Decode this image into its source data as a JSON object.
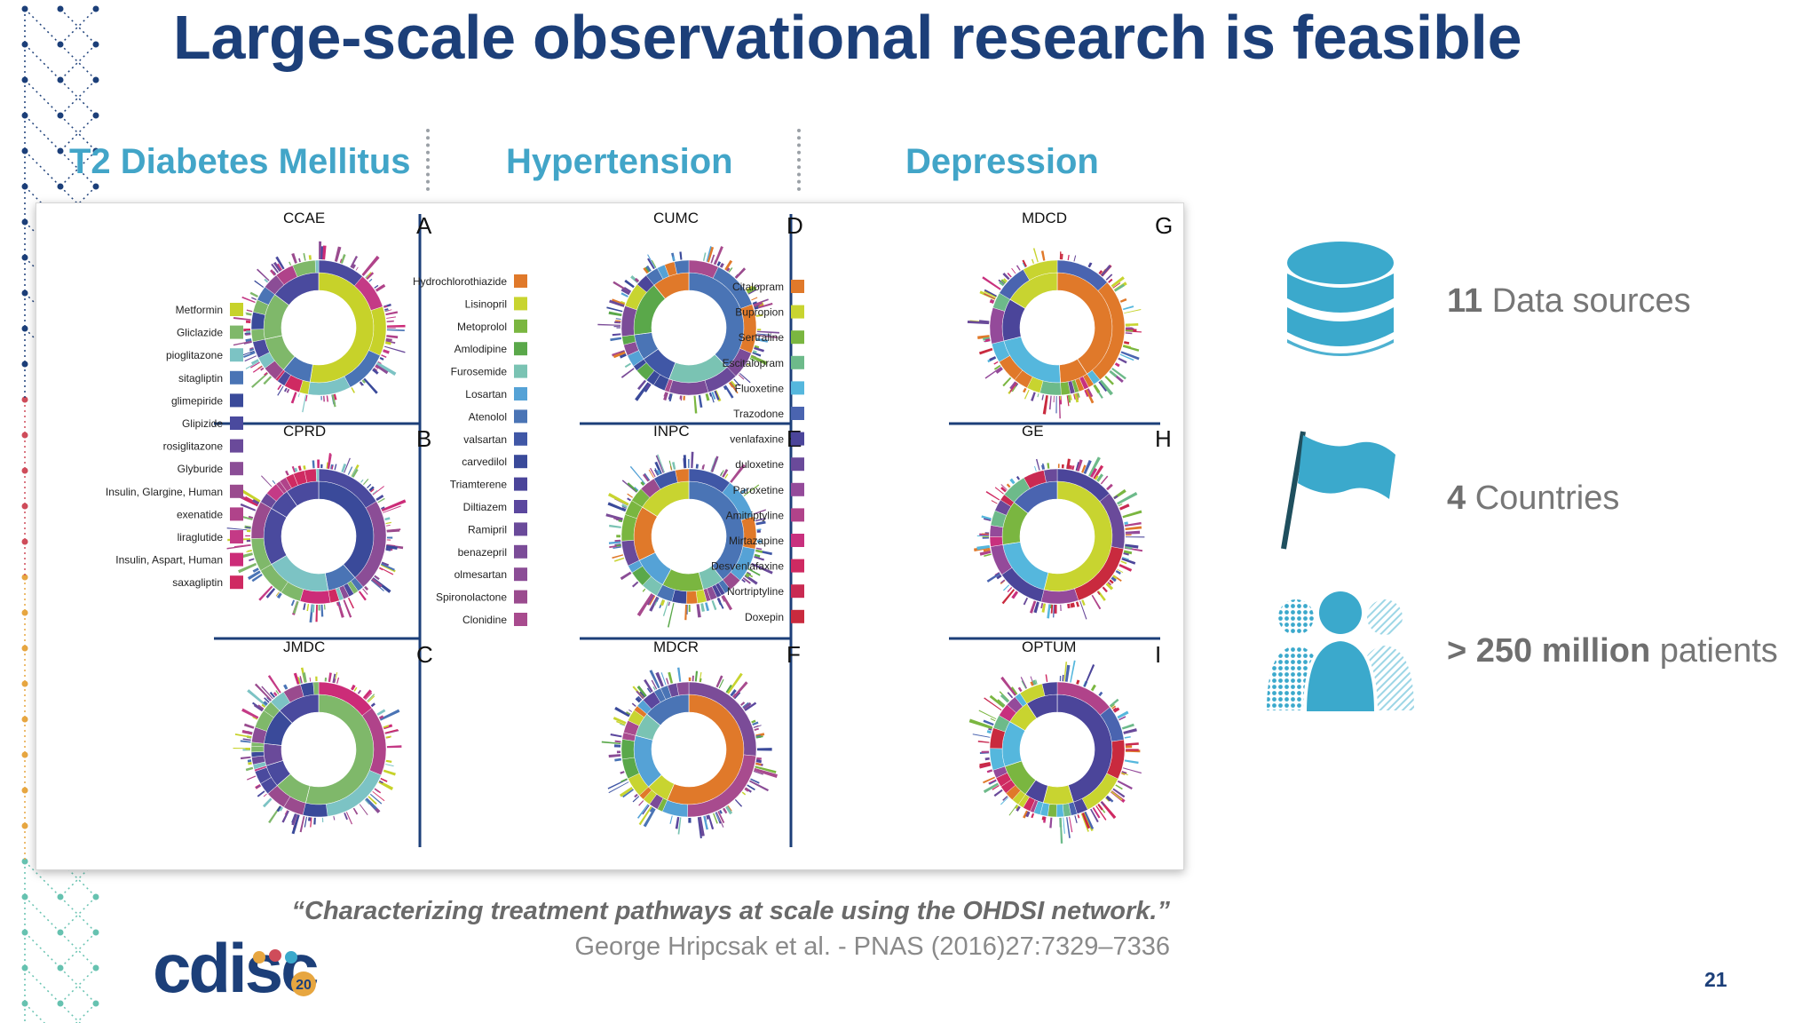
{
  "title": "Large-scale observational research is feasible",
  "conditions": [
    "T2 Diabetes Mellitus",
    "Hypertension",
    "Depression"
  ],
  "figure": {
    "panels": [
      {
        "letter": "A",
        "source": "CCAE"
      },
      {
        "letter": "B",
        "source": "CPRD"
      },
      {
        "letter": "C",
        "source": "JMDC"
      },
      {
        "letter": "D",
        "source": "CUMC"
      },
      {
        "letter": "E",
        "source": "INPC"
      },
      {
        "letter": "F",
        "source": "MDCR"
      },
      {
        "letter": "G",
        "source": "MDCD"
      },
      {
        "letter": "H",
        "source": "GE"
      },
      {
        "letter": "I",
        "source": "OPTUM"
      }
    ],
    "legends": [
      {
        "items": [
          "Metformin",
          "Gliclazide",
          "pioglitazone",
          "sitagliptin",
          "glimepiride",
          "Glipizide",
          "rosiglitazone",
          "Glyburide",
          "Insulin, Glargine, Human",
          "exenatide",
          "liraglutide",
          "Insulin, Aspart, Human",
          "saxagliptin"
        ],
        "colors": [
          "#c7d22a",
          "#7fb86a",
          "#7cc3c4",
          "#4a74b5",
          "#3a4a9a",
          "#4a4a9e",
          "#6a4a9a",
          "#8b4d96",
          "#9a4b8e",
          "#b0438a",
          "#c43a86",
          "#cc2c78",
          "#cf2a62"
        ]
      },
      {
        "items": [
          "Hydrochlorothiazide",
          "Lisinopril",
          "Metoprolol",
          "Amlodipine",
          "Furosemide",
          "Losartan",
          "Atenolol",
          "valsartan",
          "carvedilol",
          "Triamterene",
          "Diltiazem",
          "Ramipril",
          "benazepril",
          "olmesartan",
          "Spironolactone",
          "Clonidine"
        ],
        "colors": [
          "#e0792a",
          "#c8d430",
          "#7ab640",
          "#5aa84a",
          "#7ac3b3",
          "#55a2d6",
          "#4a74b5",
          "#4057a6",
          "#3a4a9a",
          "#4b459a",
          "#5b479e",
          "#6a4a9a",
          "#7b4c98",
          "#8b4d96",
          "#9a4b8e",
          "#a84b8e"
        ]
      },
      {
        "items": [
          "Citalopram",
          "Bupropion",
          "Sertraline",
          "Escitalopram",
          "Fluoxetine",
          "Trazodone",
          "venlafaxine",
          "duloxetine",
          "Paroxetine",
          "Amitriptyline",
          "Mirtazapine",
          "Desvenlafaxine",
          "Nortriptyline",
          "Doxepin"
        ],
        "colors": [
          "#e0792a",
          "#c8d430",
          "#7ab640",
          "#6dba8a",
          "#55b7dd",
          "#4a64b0",
          "#4b459a",
          "#6a4a9a",
          "#944a9a",
          "#b0438a",
          "#c8307e",
          "#cf2a62",
          "#c92a52",
          "#c92a3e"
        ]
      }
    ]
  },
  "stats": [
    {
      "value": "11",
      "label": "Data sources",
      "icon": "database-icon"
    },
    {
      "value": "4",
      "label": "Countries",
      "icon": "flag-icon"
    },
    {
      "value": "> 250 million",
      "label": "patients",
      "icon": "people-icon"
    }
  ],
  "quote": "“Characterizing treatment pathways at scale using the OHDSI network.”",
  "citation": "George Hripcsak et al. - PNAS (2016)27:7329–7336",
  "page_number": "21",
  "logo": {
    "text": "cdisc",
    "badge": "20"
  },
  "colors": {
    "title": "#1c3f79",
    "accent": "#42a5c8"
  }
}
